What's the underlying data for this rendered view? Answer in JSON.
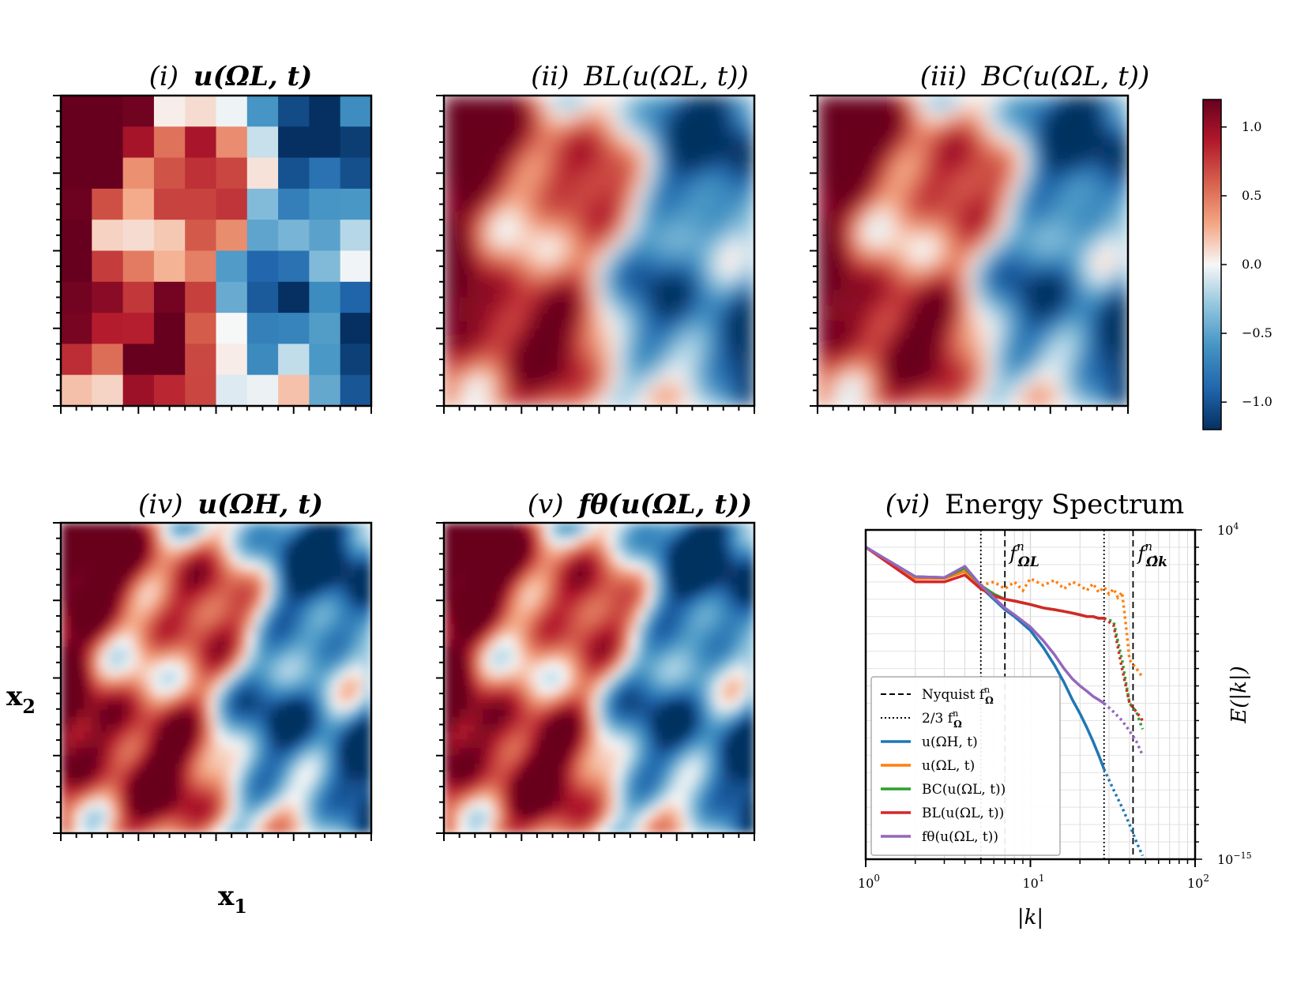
{
  "colormap": {
    "name": "RdBu_r",
    "stops": [
      "#053061",
      "#2166ac",
      "#4393c3",
      "#92c5de",
      "#f7f7f7",
      "#f4a582",
      "#d6604d",
      "#b2182b",
      "#67001f"
    ],
    "vmin": -1.2,
    "vmax": 1.2,
    "ticks": [
      1.0,
      0.5,
      0.0,
      -0.5,
      -1.0
    ],
    "tick_labels": [
      "1.0",
      "0.5",
      "0.0",
      "−0.5",
      "−1.0"
    ]
  },
  "axes_labels": {
    "x1": "x",
    "x1_sub": "1",
    "x2": "x",
    "x2_sub": "2"
  },
  "chart_data": [
    {
      "type": "heatmap",
      "panel": "i",
      "title": "(i) u(ΩL, t)",
      "title_prefix": "(i)",
      "title_body": "u(ΩL, t)",
      "resolution": "low (10x10 blocks)"
    },
    {
      "type": "heatmap",
      "panel": "ii",
      "title": "(ii) BL(u(ΩL, t))",
      "title_prefix": "(ii)",
      "title_body": "BL(u(ΩL, t))",
      "resolution": "bilinear interpolation"
    },
    {
      "type": "heatmap",
      "panel": "iii",
      "title": "(iii) BC(u(ΩL, t))",
      "title_prefix": "(iii)",
      "title_body": "BC(u(ΩL, t))",
      "resolution": "bicubic interpolation"
    },
    {
      "type": "heatmap",
      "panel": "iv",
      "title": "(iv) u(ΩH, t)",
      "title_prefix": "(iv)",
      "title_body": "u(ΩH, t)",
      "resolution": "high"
    },
    {
      "type": "heatmap",
      "panel": "v",
      "title": "(v) fθ(u(ΩL, t))",
      "title_prefix": "(v)",
      "title_body": "fθ(u(ΩL, t))",
      "resolution": "model output"
    },
    {
      "type": "line",
      "panel": "vi",
      "title": "(vi) Energy Spectrum",
      "title_prefix": "(vi)",
      "title_body": "Energy Spectrum",
      "xlabel": "|k|",
      "ylabel": "E(|k|)",
      "xscale": "log",
      "yscale": "log",
      "xlim": [
        1,
        100
      ],
      "ylim_exp": [
        -15,
        4
      ],
      "xtick_labels": [
        "10",
        "10",
        "10"
      ],
      "xtick_exps": [
        "0",
        "1",
        "2"
      ],
      "ytick_labels": [
        "10",
        "10"
      ],
      "ytick_exps": [
        "4",
        "−15"
      ],
      "vlines": [
        {
          "x": 5,
          "style": "dotted",
          "name": "two-thirds-low"
        },
        {
          "x": 7,
          "style": "dashed",
          "name": "nyquist-low",
          "label": "f",
          "label_sub": "ΩL",
          "label_sup": "n"
        },
        {
          "x": 28,
          "style": "dotted",
          "name": "two-thirds-high"
        },
        {
          "x": 42,
          "style": "dashed",
          "name": "nyquist-high",
          "label": "f",
          "label_sub": "Ω̂k",
          "label_sup": "n"
        }
      ],
      "series": [
        {
          "name": "u(ΩH, t)",
          "color": "#1f77b4",
          "x": [
            1,
            2,
            3,
            4,
            5,
            6,
            7,
            8,
            10,
            12,
            14,
            16,
            18,
            20,
            22,
            24,
            26,
            28
          ],
          "y_exp": [
            3.0,
            1.3,
            1.25,
            1.8,
            0.7,
            0.0,
            -0.6,
            -1.0,
            -1.8,
            -2.8,
            -3.8,
            -4.8,
            -5.8,
            -6.6,
            -7.4,
            -8.2,
            -9.0,
            -9.8
          ],
          "x_dotted": [
            28,
            32,
            36,
            40,
            44,
            48
          ],
          "y_exp_dotted": [
            -9.8,
            -11.0,
            -12.0,
            -13.0,
            -14.0,
            -14.8
          ]
        },
        {
          "name": "u(ΩL, t)",
          "color": "#ff7f0e",
          "x": [
            1,
            2,
            3,
            4,
            5
          ],
          "y_exp": [
            3.0,
            1.2,
            1.2,
            1.6,
            0.8
          ],
          "x_dotted": [
            5,
            6,
            7,
            8,
            9,
            10,
            12,
            14,
            16,
            18,
            20,
            22,
            24,
            26,
            28,
            30,
            32,
            34,
            36,
            38,
            40,
            44,
            48
          ],
          "y_exp_dotted": [
            0.8,
            1.0,
            0.6,
            1.0,
            0.5,
            1.2,
            0.8,
            1.1,
            0.6,
            1.0,
            0.8,
            0.5,
            0.9,
            0.4,
            0.7,
            0.3,
            0.6,
            0.1,
            0.4,
            -1.5,
            -3.5,
            -4.0,
            -4.5
          ]
        },
        {
          "name": "BC(u(ΩL, t))",
          "color": "#2ca02c",
          "x": [
            1,
            2,
            3,
            4,
            5,
            6,
            7,
            8,
            10,
            12,
            14,
            16,
            18,
            20,
            22,
            24,
            26,
            28
          ],
          "y_exp": [
            3.0,
            1.3,
            1.25,
            1.8,
            0.8,
            0.3,
            0.0,
            -0.1,
            -0.3,
            -0.5,
            -0.6,
            -0.7,
            -0.8,
            -0.9,
            -1.0,
            -1.0,
            -1.1,
            -1.1
          ],
          "x_dotted": [
            28,
            32,
            36,
            40,
            44,
            48
          ],
          "y_exp_dotted": [
            -1.1,
            -1.3,
            -3.5,
            -6.0,
            -6.5,
            -7.5
          ]
        },
        {
          "name": "BL(u(ΩL, t))",
          "color": "#d62728",
          "x": [
            1,
            2,
            3,
            4,
            5,
            6,
            7,
            8,
            10,
            12,
            14,
            16,
            18,
            20,
            22,
            24,
            26,
            28
          ],
          "y_exp": [
            3.0,
            1.0,
            1.0,
            1.4,
            0.6,
            0.2,
            0.0,
            -0.1,
            -0.3,
            -0.5,
            -0.6,
            -0.7,
            -0.8,
            -0.9,
            -1.0,
            -1.0,
            -1.1,
            -1.1
          ],
          "x_dotted": [
            28,
            32,
            36,
            40,
            44,
            48
          ],
          "y_exp_dotted": [
            -1.1,
            -1.5,
            -4.0,
            -6.0,
            -6.5,
            -7.0
          ]
        },
        {
          "name": "fθ(u(ΩL, t))",
          "color": "#9467bd",
          "x": [
            1,
            2,
            3,
            4,
            5,
            6,
            7,
            8,
            10,
            12,
            14,
            16,
            18,
            20,
            22,
            24,
            26,
            28
          ],
          "y_exp": [
            3.0,
            1.3,
            1.25,
            1.9,
            0.8,
            0.1,
            -0.5,
            -0.9,
            -1.6,
            -2.4,
            -3.2,
            -4.0,
            -4.6,
            -5.0,
            -5.3,
            -5.6,
            -5.8,
            -6.0
          ],
          "x_dotted": [
            28,
            32,
            36,
            40,
            44,
            48
          ],
          "y_exp_dotted": [
            -6.0,
            -6.5,
            -7.0,
            -7.6,
            -8.2,
            -9.0
          ]
        }
      ],
      "legend": {
        "position": "lower-left",
        "entries": [
          {
            "style": "dashed",
            "label": "Nyquist f",
            "sub": "Ω",
            "sup": "n"
          },
          {
            "style": "dotted",
            "label": "2/3 f",
            "sub": "Ω",
            "sup": "n"
          },
          {
            "style": "solid",
            "color": "#1f77b4",
            "label": "u(ΩH, t)"
          },
          {
            "style": "solid",
            "color": "#ff7f0e",
            "label": "u(ΩL, t)"
          },
          {
            "style": "solid",
            "color": "#2ca02c",
            "label": "BC(u(ΩL, t))"
          },
          {
            "style": "solid",
            "color": "#d62728",
            "label": "BL(u(ΩL, t))"
          },
          {
            "style": "solid",
            "color": "#9467bd",
            "label": "fθ(u(ΩL, t))"
          }
        ]
      }
    }
  ]
}
